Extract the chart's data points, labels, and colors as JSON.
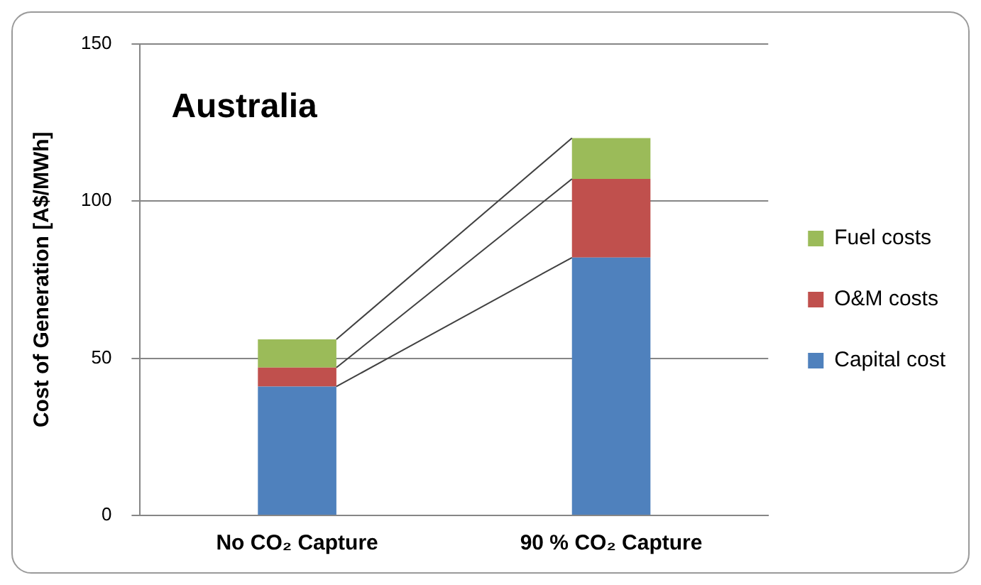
{
  "chart_data": {
    "type": "bar",
    "title": "Australia",
    "ylabel": "Cost of Generation [A$/MWh]",
    "categories": [
      "No CO₂ Capture",
      "90 % CO₂ Capture"
    ],
    "stacked": true,
    "series": [
      {
        "name": "Capital cost",
        "color": "#4f81bd",
        "values": [
          41,
          82
        ]
      },
      {
        "name": "O&M costs",
        "color": "#c0504d",
        "values": [
          6,
          25
        ]
      },
      {
        "name": "Fuel costs",
        "color": "#9bbb59",
        "values": [
          9,
          13
        ]
      }
    ],
    "ylim": [
      0,
      150
    ],
    "yticks": [
      0,
      50,
      100,
      150
    ],
    "grid": "y",
    "legend": "right"
  }
}
